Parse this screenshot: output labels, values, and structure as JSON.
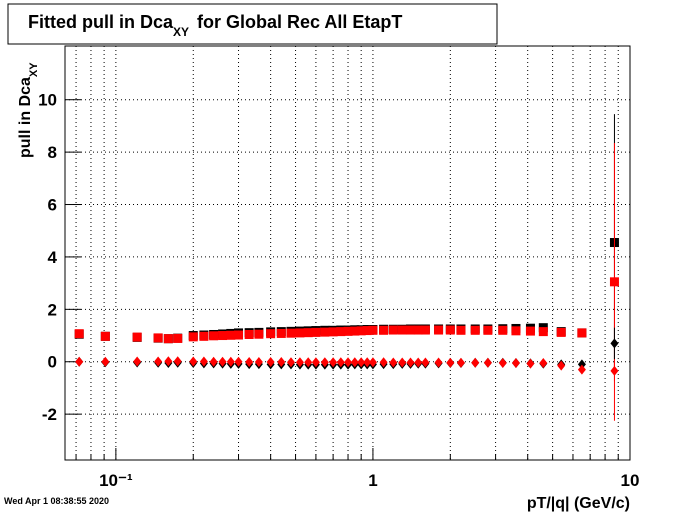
{
  "chart_data": {
    "type": "scatter",
    "title": {
      "text": "Fitted pull in Dca",
      "sub": "XY",
      "tail": "for Global Rec All EtapT"
    },
    "x_label": "pT/|q| (GeV/c)",
    "y_label": {
      "text": "pull in Dca",
      "sub": "XY"
    },
    "timestamp": "Wed Apr  1 08:38:55 2020",
    "xlog": true,
    "grid": true,
    "xlim": [
      0.0634,
      10
    ],
    "ylim": [
      -3.75,
      12.05
    ],
    "xticks": [
      {
        "value": 0.1,
        "label": "10⁻¹"
      },
      1,
      10
    ],
    "xminorticks": [
      0.07,
      0.08,
      0.09,
      0.2,
      0.3,
      0.4,
      0.5,
      0.6,
      0.7,
      0.8,
      0.9,
      2,
      3,
      4,
      5,
      6,
      7,
      8,
      9
    ],
    "yticks": [
      -2,
      0,
      2,
      4,
      6,
      8,
      10
    ],
    "x": [
      0.072,
      0.091,
      0.121,
      0.146,
      0.16,
      0.174,
      0.2,
      0.22,
      0.24,
      0.26,
      0.28,
      0.3,
      0.33,
      0.36,
      0.4,
      0.44,
      0.48,
      0.52,
      0.56,
      0.6,
      0.65,
      0.7,
      0.75,
      0.8,
      0.85,
      0.9,
      0.95,
      1.0,
      1.1,
      1.2,
      1.3,
      1.4,
      1.5,
      1.6,
      1.8,
      2.0,
      2.2,
      2.5,
      2.8,
      3.2,
      3.6,
      4.1,
      4.6,
      5.4,
      6.5,
      8.7
    ],
    "series": [
      {
        "marker": "square",
        "color": "#000000",
        "values": [
          1.05,
          0.97,
          0.93,
          0.9,
          0.88,
          0.9,
          1.0,
          1.02,
          1.04,
          1.06,
          1.08,
          1.1,
          1.11,
          1.12,
          1.14,
          1.15,
          1.16,
          1.17,
          1.18,
          1.19,
          1.2,
          1.2,
          1.21,
          1.21,
          1.22,
          1.22,
          1.23,
          1.23,
          1.24,
          1.24,
          1.24,
          1.25,
          1.25,
          1.25,
          1.25,
          1.25,
          1.25,
          1.25,
          1.25,
          1.26,
          1.27,
          1.28,
          1.3,
          1.15,
          1.1,
          4.55
        ],
        "errors": [
          0.02,
          0.02,
          0.02,
          0.02,
          0.02,
          0.02,
          0.02,
          0.02,
          0.02,
          0.02,
          0.02,
          0.02,
          0.02,
          0.02,
          0.02,
          0.02,
          0.02,
          0.02,
          0.02,
          0.02,
          0.02,
          0.02,
          0.02,
          0.02,
          0.02,
          0.02,
          0.02,
          0.02,
          0.02,
          0.02,
          0.02,
          0.02,
          0.02,
          0.02,
          0.02,
          0.02,
          0.02,
          0.02,
          0.03,
          0.03,
          0.03,
          0.04,
          0.05,
          0.06,
          0.08,
          4.9
        ]
      },
      {
        "marker": "square",
        "color": "#ff0000",
        "values": [
          1.07,
          0.97,
          0.94,
          0.91,
          0.88,
          0.89,
          0.95,
          0.97,
          0.99,
          1.0,
          1.01,
          1.02,
          1.04,
          1.05,
          1.07,
          1.08,
          1.09,
          1.1,
          1.11,
          1.12,
          1.13,
          1.14,
          1.15,
          1.16,
          1.17,
          1.18,
          1.19,
          1.2,
          1.2,
          1.21,
          1.21,
          1.21,
          1.21,
          1.21,
          1.21,
          1.21,
          1.2,
          1.2,
          1.2,
          1.2,
          1.18,
          1.17,
          1.15,
          1.12,
          1.1,
          3.05
        ],
        "errors": [
          0.02,
          0.02,
          0.02,
          0.02,
          0.02,
          0.02,
          0.02,
          0.02,
          0.02,
          0.02,
          0.02,
          0.02,
          0.02,
          0.02,
          0.02,
          0.02,
          0.02,
          0.02,
          0.02,
          0.02,
          0.02,
          0.02,
          0.02,
          0.02,
          0.02,
          0.02,
          0.02,
          0.02,
          0.02,
          0.02,
          0.02,
          0.02,
          0.02,
          0.02,
          0.02,
          0.02,
          0.02,
          0.02,
          0.03,
          0.03,
          0.03,
          0.04,
          0.05,
          0.06,
          0.08,
          5.3
        ]
      },
      {
        "marker": "diamond",
        "color": "#000000",
        "values": [
          0.0,
          -0.02,
          -0.03,
          -0.04,
          -0.05,
          -0.04,
          -0.05,
          -0.06,
          -0.06,
          -0.07,
          -0.08,
          -0.08,
          -0.09,
          -0.09,
          -0.1,
          -0.1,
          -0.1,
          -0.11,
          -0.11,
          -0.11,
          -0.11,
          -0.11,
          -0.11,
          -0.11,
          -0.1,
          -0.1,
          -0.1,
          -0.1,
          -0.09,
          -0.09,
          -0.08,
          -0.08,
          -0.07,
          -0.07,
          -0.06,
          -0.05,
          -0.05,
          -0.04,
          -0.04,
          -0.04,
          -0.05,
          -0.06,
          -0.07,
          -0.1,
          -0.1,
          0.7
        ],
        "errors": [
          0.02,
          0.02,
          0.02,
          0.02,
          0.02,
          0.02,
          0.02,
          0.02,
          0.02,
          0.02,
          0.02,
          0.02,
          0.02,
          0.02,
          0.02,
          0.02,
          0.02,
          0.02,
          0.02,
          0.02,
          0.02,
          0.02,
          0.02,
          0.02,
          0.02,
          0.02,
          0.02,
          0.02,
          0.02,
          0.02,
          0.02,
          0.02,
          0.02,
          0.02,
          0.02,
          0.02,
          0.02,
          0.02,
          0.03,
          0.03,
          0.03,
          0.04,
          0.05,
          0.06,
          0.08,
          0.6
        ]
      },
      {
        "marker": "diamond",
        "color": "#ff0000",
        "values": [
          0.0,
          0.0,
          0.01,
          0.01,
          0.02,
          0.02,
          0.01,
          0.01,
          0.0,
          0.0,
          0.0,
          0.0,
          -0.01,
          -0.01,
          -0.01,
          -0.01,
          -0.02,
          -0.02,
          -0.02,
          -0.02,
          -0.02,
          -0.02,
          -0.02,
          -0.02,
          -0.02,
          -0.02,
          -0.02,
          -0.02,
          -0.02,
          -0.03,
          -0.03,
          -0.03,
          -0.03,
          -0.03,
          -0.03,
          -0.04,
          -0.04,
          -0.04,
          -0.04,
          -0.05,
          -0.05,
          -0.07,
          -0.05,
          -0.15,
          -0.3,
          -0.35
        ],
        "errors": [
          0.02,
          0.02,
          0.02,
          0.02,
          0.02,
          0.02,
          0.02,
          0.02,
          0.02,
          0.02,
          0.02,
          0.02,
          0.02,
          0.02,
          0.02,
          0.02,
          0.02,
          0.02,
          0.02,
          0.02,
          0.02,
          0.02,
          0.02,
          0.02,
          0.02,
          0.02,
          0.02,
          0.02,
          0.02,
          0.02,
          0.02,
          0.02,
          0.02,
          0.02,
          0.02,
          0.02,
          0.02,
          0.02,
          0.03,
          0.03,
          0.03,
          0.04,
          0.05,
          0.06,
          0.08,
          0.4
        ]
      }
    ]
  }
}
